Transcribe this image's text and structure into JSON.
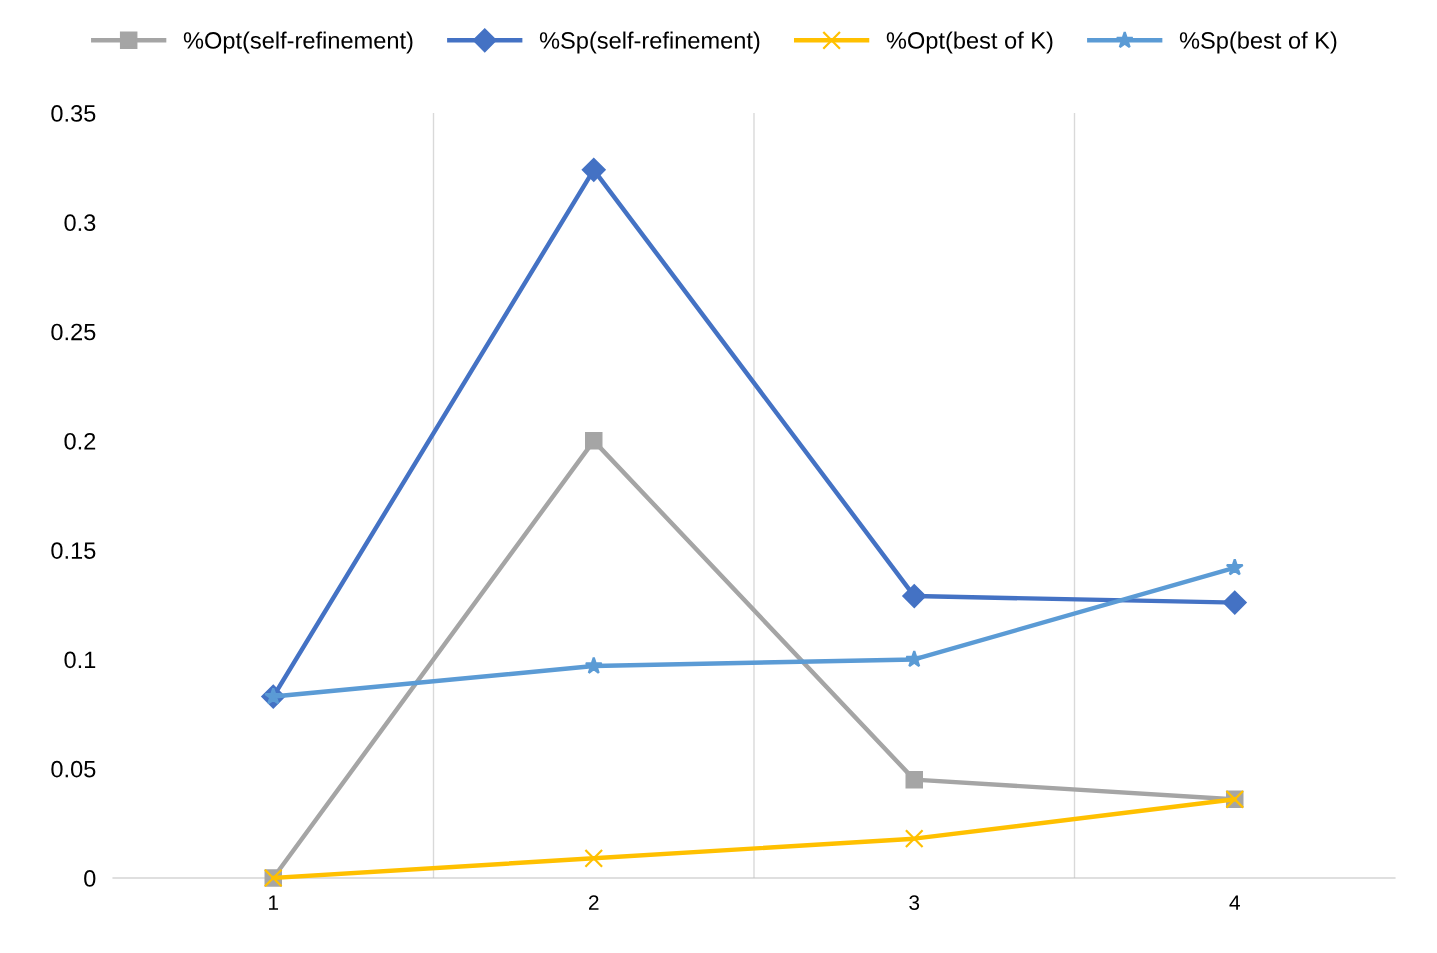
{
  "chart_data": {
    "type": "line",
    "categories": [
      "1",
      "2",
      "3",
      "4"
    ],
    "series": [
      {
        "name": "%Opt(self-refinement)",
        "color": "#a5a5a5",
        "marker": "square",
        "values": [
          0,
          0.2,
          0.045,
          0.036
        ]
      },
      {
        "name": "%Sp(self-refinement)",
        "color": "#4472c4",
        "marker": "diamond",
        "values": [
          0.083,
          0.324,
          0.129,
          0.126
        ]
      },
      {
        "name": "%Opt(best of K)",
        "color": "#ffc000",
        "marker": "cross",
        "values": [
          0,
          0.009,
          0.018,
          0.036
        ]
      },
      {
        "name": "%Sp(best of K)",
        "color": "#5b9bd5",
        "marker": "star",
        "values": [
          0.083,
          0.097,
          0.1,
          0.142
        ]
      }
    ],
    "ylim": [
      0,
      0.35
    ],
    "yticks": [
      0,
      0.05,
      0.1,
      0.15,
      0.2,
      0.25,
      0.3,
      0.35
    ],
    "grid": "x",
    "legend": "top",
    "line_style": "solid"
  }
}
